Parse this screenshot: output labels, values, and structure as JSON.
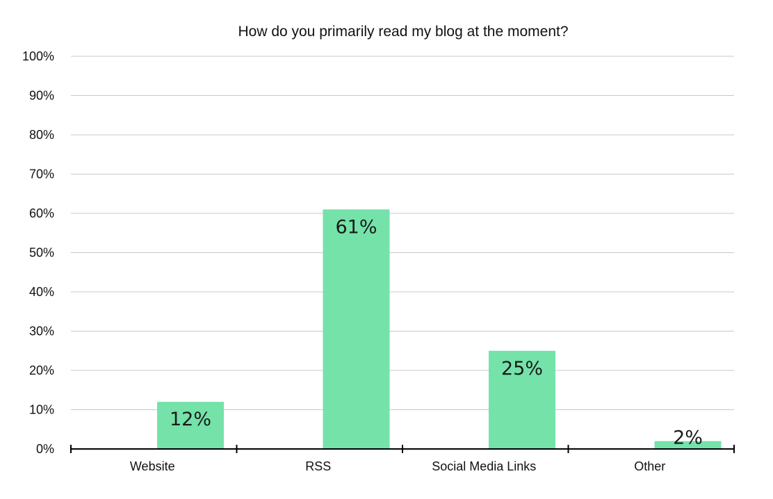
{
  "chart_data": {
    "type": "bar",
    "title": "How do you primarily read my blog at the moment?",
    "xlabel": "",
    "ylabel": "",
    "categories": [
      "Website",
      "RSS",
      "Social Media Links",
      "Other"
    ],
    "values": [
      12,
      61,
      25,
      2
    ],
    "value_labels": [
      "12%",
      "61%",
      "25%",
      "2%"
    ],
    "ylim": [
      0,
      100
    ],
    "yticks": [
      0,
      10,
      20,
      30,
      40,
      50,
      60,
      70,
      80,
      90,
      100
    ],
    "ytick_labels": [
      "0%",
      "10%",
      "20%",
      "30%",
      "40%",
      "50%",
      "60%",
      "70%",
      "80%",
      "90%",
      "100%"
    ],
    "grid": true,
    "legend": "none",
    "bar_color": "#74e2a9"
  }
}
